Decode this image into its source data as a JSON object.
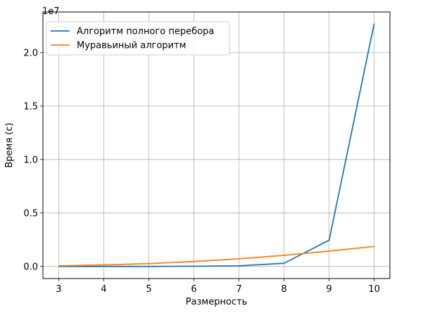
{
  "chart_data": {
    "type": "line",
    "title": "",
    "xlabel": "Размерность",
    "ylabel": "Время (с)",
    "y_offset_label": "1e7",
    "x": [
      3,
      4,
      5,
      6,
      7,
      8,
      9,
      10
    ],
    "xticks": [
      "3",
      "4",
      "5",
      "6",
      "7",
      "8",
      "9",
      "10"
    ],
    "xlim": [
      2.65,
      10.35
    ],
    "yticks_values": [
      0,
      5000000,
      10000000,
      15000000,
      20000000
    ],
    "yticks": [
      "0.0",
      "0.5",
      "1.0",
      "1.5",
      "2.0"
    ],
    "ylim": [
      -1130000,
      23800000
    ],
    "grid": true,
    "legend_position": "top-left",
    "series": [
      {
        "name": "Алгоритм полного перебора",
        "color": "#1f77b4",
        "values": [
          0,
          0,
          2000,
          20000,
          60000,
          300000,
          2450000,
          22700000
        ]
      },
      {
        "name": "Муравьиный алгоритм",
        "color": "#ff7f0e",
        "values": [
          60000,
          140000,
          270000,
          460000,
          710000,
          1040000,
          1440000,
          1870000
        ]
      }
    ]
  }
}
